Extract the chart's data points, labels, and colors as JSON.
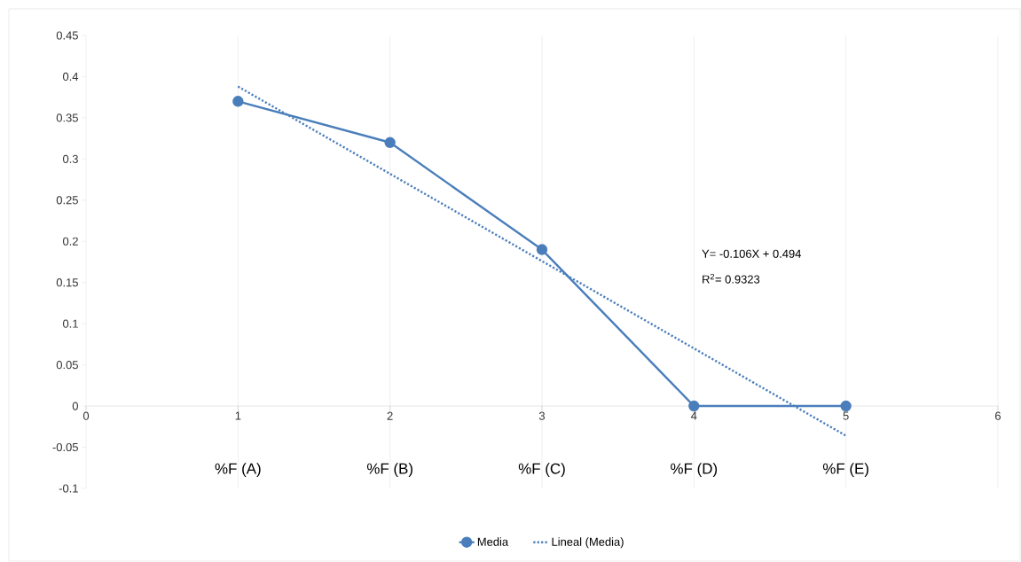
{
  "chart_data": {
    "type": "line",
    "x": [
      1,
      2,
      3,
      4,
      5
    ],
    "series": [
      {
        "name": "Media",
        "color": "#4a7ebb",
        "values": [
          0.37,
          0.32,
          0.19,
          0,
          0
        ],
        "marker": "circle",
        "line_style": "solid"
      },
      {
        "name": "Lineal (Media)",
        "color": "#4a7ebb",
        "type": "line",
        "x": [
          1,
          5
        ],
        "values": [
          0.388,
          -0.036
        ],
        "marker": "none",
        "line_style": "dotted"
      }
    ],
    "xlim": [
      0,
      6
    ],
    "xticks": [
      0,
      1,
      2,
      3,
      4,
      5,
      6
    ],
    "ylim": [
      -0.1,
      0.45
    ],
    "yticks": [
      -0.1,
      -0.05,
      0,
      0.05,
      0.1,
      0.15,
      0.2,
      0.25,
      0.3,
      0.35,
      0.4,
      0.45
    ],
    "grid": "x",
    "legend": "bottom",
    "annotations": [
      "%F (A)",
      "%F (B)",
      "%F (C)",
      "%F (D)",
      "%F (E)",
      "Y= -0.106X + 0.494",
      "R$^{2}$= 0.9323"
    ]
  }
}
